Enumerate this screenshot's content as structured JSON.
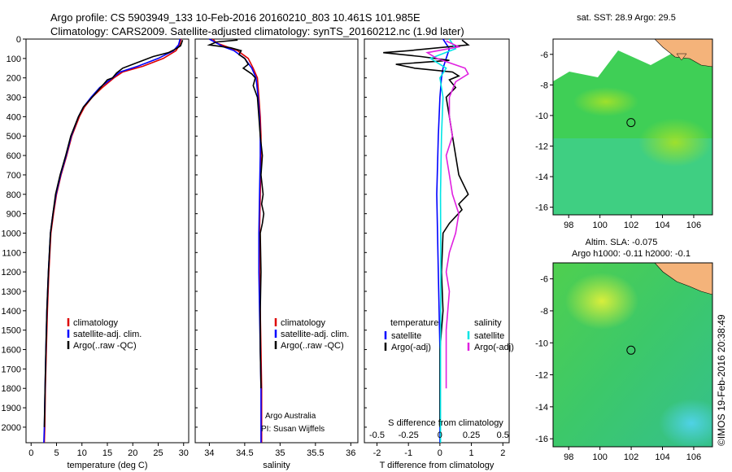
{
  "header": {
    "line1": "Argo profile: CS 5903949_133 10-Feb-2016 20160210_803 10.461S 101.985E",
    "line2": "Climatology: CARS2009. Satellite-adjusted climatology: synTS_20160212.nc (1.9d later)"
  },
  "credit": "©IMOS 19-Feb-2016 20:38:49",
  "colors": {
    "climatology": "#dd0000",
    "satellite": "#0000ff",
    "argo": "#000000",
    "sal_satellite": "#00e5e5",
    "sal_argo": "#e020e0",
    "land": "#f4b37a",
    "sst_white": "#ffffff"
  },
  "chart_data": [
    {
      "type": "line",
      "panel": "temperature",
      "xlabel": "temperature (deg C)",
      "ylabel": "",
      "xlim": [
        -1,
        31
      ],
      "ylim": [
        2080,
        0
      ],
      "xticks": [
        0,
        5,
        10,
        15,
        20,
        25,
        30
      ],
      "yticks": [
        0,
        100,
        200,
        300,
        400,
        500,
        600,
        700,
        800,
        900,
        1000,
        1100,
        1200,
        1300,
        1400,
        1500,
        1600,
        1700,
        1800,
        1900,
        2000
      ],
      "legend": [
        "climatology",
        "satellite-adj. clim.",
        "Argo(..raw -QC)"
      ],
      "series": [
        {
          "name": "climatology",
          "color": "#dd0000",
          "x": [
            29.5,
            29.2,
            28.5,
            26,
            22,
            18,
            16.3,
            14,
            12,
            10.5,
            9.5,
            8,
            7,
            5.9,
            5,
            4.4,
            3.9,
            3.5,
            3.2,
            3.0,
            2.8,
            2.7,
            2.6
          ],
          "y": [
            0,
            30,
            60,
            100,
            140,
            170,
            200,
            250,
            300,
            350,
            400,
            500,
            600,
            700,
            800,
            900,
            1000,
            1200,
            1400,
            1600,
            1800,
            2000,
            2080
          ]
        },
        {
          "name": "satellite-adj. clim.",
          "color": "#0000ff",
          "x": [
            29.3,
            29.0,
            28.0,
            25,
            21,
            17.5,
            16.0,
            13.5,
            11.8,
            10.3,
            9.3,
            7.9,
            6.9,
            5.8,
            4.9,
            4.3,
            3.8,
            3.4,
            3.1,
            2.9,
            2.75,
            2.6,
            2.5
          ],
          "y": [
            0,
            30,
            60,
            100,
            140,
            170,
            200,
            250,
            300,
            350,
            400,
            500,
            600,
            700,
            800,
            900,
            1000,
            1200,
            1400,
            1600,
            1800,
            2000,
            2080
          ]
        },
        {
          "name": "Argo(..raw -QC)",
          "color": "#000000",
          "x": [
            29.8,
            29.6,
            29.4,
            28.5,
            27,
            24,
            22,
            20,
            18,
            16.8,
            16,
            15,
            14,
            12,
            10.3,
            9.3,
            7.8,
            6.8,
            5.7,
            4.8,
            4.3,
            3.8,
            3.4,
            3.1,
            2.9,
            2.75,
            2.6
          ],
          "y": [
            5,
            20,
            35,
            50,
            70,
            90,
            110,
            130,
            150,
            175,
            200,
            210,
            240,
            300,
            350,
            400,
            500,
            600,
            700,
            800,
            900,
            1000,
            1200,
            1400,
            1600,
            1800,
            2000
          ]
        }
      ]
    },
    {
      "type": "line",
      "panel": "salinity",
      "xlabel": "salinity",
      "xlim": [
        33.8,
        36.1
      ],
      "ylim": [
        2080,
        0
      ],
      "xticks": [
        34,
        34.5,
        35,
        35.5,
        36
      ],
      "legend": [
        "climatology",
        "satellite-adj. clim.",
        "Argo(..raw -QC)"
      ],
      "annotations": [
        "Argo Australia",
        "PI: Susan Wijffels"
      ],
      "series": [
        {
          "name": "climatology",
          "color": "#dd0000",
          "x": [
            34.05,
            34.1,
            34.25,
            34.4,
            34.55,
            34.62,
            34.68,
            34.7,
            34.72,
            34.73,
            34.73,
            34.72,
            34.71,
            34.71,
            34.72,
            34.73,
            34.74,
            34.74
          ],
          "y": [
            0,
            20,
            40,
            60,
            100,
            150,
            200,
            300,
            400,
            500,
            600,
            800,
            1000,
            1200,
            1400,
            1600,
            1800,
            2080
          ]
        },
        {
          "name": "satellite-adj. clim.",
          "color": "#0000ff",
          "x": [
            34.0,
            34.1,
            34.2,
            34.35,
            34.5,
            34.6,
            34.66,
            34.69,
            34.71,
            34.72,
            34.72,
            34.71,
            34.7,
            34.7,
            34.71,
            34.72,
            34.73,
            34.73
          ],
          "y": [
            0,
            20,
            40,
            60,
            100,
            150,
            200,
            300,
            400,
            500,
            600,
            800,
            1000,
            1200,
            1400,
            1600,
            1800,
            2080
          ]
        },
        {
          "name": "Argo(..raw -QC)",
          "color": "#000000",
          "x": [
            34.4,
            34.1,
            34.0,
            34.3,
            34.45,
            34.42,
            34.5,
            34.55,
            34.48,
            34.6,
            34.65,
            34.62,
            34.68,
            34.7,
            34.72,
            34.75,
            34.73,
            34.76,
            34.74,
            34.77,
            34.75,
            34.72,
            34.73,
            34.72,
            34.72,
            34.73
          ],
          "y": [
            5,
            15,
            30,
            45,
            60,
            80,
            100,
            130,
            150,
            180,
            200,
            240,
            300,
            400,
            500,
            600,
            700,
            800,
            850,
            900,
            950,
            1000,
            1200,
            1400,
            1600,
            1800
          ]
        }
      ]
    },
    {
      "type": "line",
      "panel": "difference",
      "xlabel": "T difference from climatology",
      "xlabel_top": "S difference from climatology",
      "xlim": [
        -2.4,
        2.2
      ],
      "ylim": [
        2080,
        0
      ],
      "xticks": [
        -2,
        -1,
        0,
        1,
        2
      ],
      "xticks_top": [
        -0.5,
        -0.25,
        0,
        0.25,
        0.5
      ],
      "legend_titles": [
        "temperature",
        "salinity"
      ],
      "legend": [
        "satellite",
        "Argo(-adj)",
        "satellite",
        "Argo(-adj)"
      ],
      "series": [
        {
          "name": "satellite",
          "color": "#0000ff",
          "x": [
            0.1,
            0.3,
            0.2,
            0.1,
            0.05,
            0.0,
            -0.05,
            -0.1,
            -0.05,
            0.0,
            0.0
          ],
          "y": [
            0,
            50,
            100,
            150,
            200,
            300,
            500,
            800,
            1200,
            1600,
            2080
          ]
        },
        {
          "name": "Argo(-adj)",
          "color": "#000000",
          "x": [
            0.7,
            0.9,
            -1.0,
            -1.8,
            -0.6,
            0.3,
            -1.4,
            -0.8,
            0.4,
            0.6,
            0.3,
            0.5,
            0.2,
            0.3,
            0.4,
            0.5,
            0.6,
            0.9,
            0.6,
            0.7,
            0.3,
            0.1,
            0.05,
            0.1,
            0.0,
            0.0,
            0.0
          ],
          "y": [
            5,
            30,
            60,
            70,
            90,
            110,
            130,
            150,
            170,
            190,
            210,
            250,
            300,
            400,
            500,
            600,
            700,
            800,
            850,
            880,
            950,
            1000,
            1200,
            1400,
            1600,
            1800,
            2000
          ]
        },
        {
          "name": "satellite",
          "color": "#00e5e5",
          "x": [
            0.3,
            0.5,
            -0.3,
            0.2,
            0.0,
            0.1,
            0.05,
            0.02,
            0.03,
            0.02,
            0.02
          ],
          "y": [
            0,
            50,
            100,
            150,
            200,
            300,
            500,
            800,
            1200,
            1600,
            2080
          ]
        },
        {
          "name": "Argo(-adj)",
          "color": "#e020e0",
          "x": [
            0.2,
            0.6,
            -0.4,
            -0.1,
            0.8,
            0.9,
            0.5,
            0.3,
            0.3,
            0.4,
            0.2,
            0.3,
            0.4,
            0.6,
            0.5,
            0.3,
            0.2,
            0.3,
            0.2,
            0.2
          ],
          "y": [
            10,
            40,
            70,
            100,
            150,
            180,
            220,
            300,
            400,
            500,
            600,
            700,
            800,
            900,
            1000,
            1100,
            1200,
            1300,
            1500,
            1800
          ]
        }
      ]
    },
    {
      "type": "heatmap",
      "panel": "sst-map",
      "title": "sat. SST: 28.9 Argo: 29.5",
      "xlim": [
        97,
        107.2
      ],
      "ylim": [
        -16.5,
        -5
      ],
      "xticks": [
        98,
        100,
        102,
        104,
        106
      ],
      "yticks": [
        -6,
        -8,
        -10,
        -12,
        -14,
        -16
      ],
      "argo_position": [
        101.985,
        -10.461
      ]
    },
    {
      "type": "heatmap",
      "panel": "sla-map",
      "title": "Altim. SLA: -0.075",
      "subtitle": "Argo h1000: -0.11 h2000: -0.1",
      "xlim": [
        97,
        107.2
      ],
      "ylim": [
        -16.5,
        -5
      ],
      "xticks": [
        98,
        100,
        102,
        104,
        106
      ],
      "yticks": [
        -6,
        -8,
        -10,
        -12,
        -14,
        -16
      ],
      "argo_position": [
        101.985,
        -10.461
      ]
    }
  ]
}
